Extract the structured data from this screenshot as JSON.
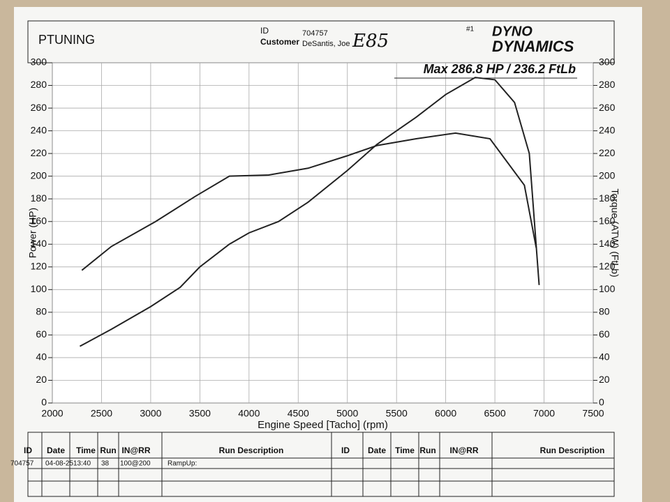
{
  "header": {
    "brand": "PTUNING",
    "id_label": "ID",
    "id": "704757",
    "customer_label": "Customer",
    "customer": "DeSantis, Joe",
    "fuel": "E85",
    "run_number": "#1",
    "logo_top": "DYNO",
    "logo_bottom": "DYNAMICS"
  },
  "chart_data": {
    "type": "line",
    "title": "Max 286.8 HP  / 236.2 FtLb",
    "xlabel": "Engine Speed [Tacho] (rpm)",
    "ylabel": "Power (HP)",
    "y2label": "Torque (ATW) (FtLb)",
    "xlim": [
      2000,
      7500
    ],
    "xticks": [
      2000,
      2500,
      3000,
      3500,
      4000,
      4500,
      5000,
      5500,
      6000,
      6500,
      7000,
      7500
    ],
    "ylim": [
      0,
      300
    ],
    "yticks": [
      0,
      20,
      40,
      60,
      80,
      100,
      120,
      140,
      160,
      180,
      200,
      220,
      240,
      260,
      280,
      300
    ],
    "y2lim": [
      0,
      300
    ],
    "y2ticks": [
      0,
      20,
      40,
      60,
      80,
      100,
      120,
      140,
      160,
      180,
      200,
      220,
      240,
      260,
      280,
      300
    ],
    "grid": true,
    "series": [
      {
        "color": "#222222",
        "x": [
          2280,
          2600,
          3000,
          3300,
          3500,
          3800,
          4000,
          4300,
          4600,
          5000,
          5300,
          5700,
          6000,
          6300,
          6500,
          6700,
          6850,
          6950
        ],
        "values": [
          50,
          65,
          85,
          102,
          120,
          140,
          150,
          160,
          177,
          205,
          228,
          252,
          272,
          287,
          285,
          265,
          220,
          104
        ]
      },
      {
        "color": "#222222",
        "axis": "y2",
        "x": [
          2300,
          2600,
          3050,
          3450,
          3800,
          4200,
          4600,
          5000,
          5300,
          5700,
          6100,
          6450,
          6800,
          6920
        ],
        "values": [
          117,
          138,
          160,
          182,
          200,
          201,
          207,
          218,
          227,
          233,
          238,
          233,
          192,
          137
        ]
      }
    ]
  },
  "run_table": {
    "columns": [
      "ID",
      "Date",
      "Time",
      "Run",
      "IN@RR",
      "Run Description"
    ],
    "rows": [
      [
        "704757",
        "04-08-25",
        "13:40",
        "38",
        "100@200",
        "RampUp:"
      ]
    ]
  }
}
